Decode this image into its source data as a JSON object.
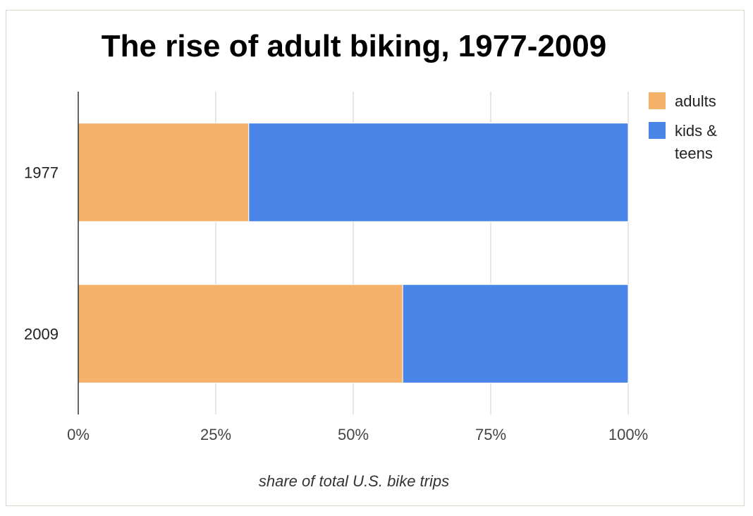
{
  "chart_data": {
    "type": "bar",
    "orientation": "horizontal",
    "stacked": true,
    "title": "The rise of adult biking, 1977-2009",
    "xlabel": "share of total U.S. bike trips",
    "ylabel": "",
    "categories": [
      "1977",
      "2009"
    ],
    "series": [
      {
        "name": "adults",
        "values": [
          31,
          59
        ],
        "color": "#f6b26b"
      },
      {
        "name": "kids & teens",
        "values": [
          69,
          41
        ],
        "color": "#4a86e8"
      }
    ],
    "xlim": [
      0,
      100
    ],
    "xticks": [
      0,
      25,
      50,
      75,
      100
    ],
    "xtick_labels": [
      "0%",
      "25%",
      "50%",
      "75%",
      "100%"
    ],
    "grid": true,
    "legend_position": "right"
  }
}
